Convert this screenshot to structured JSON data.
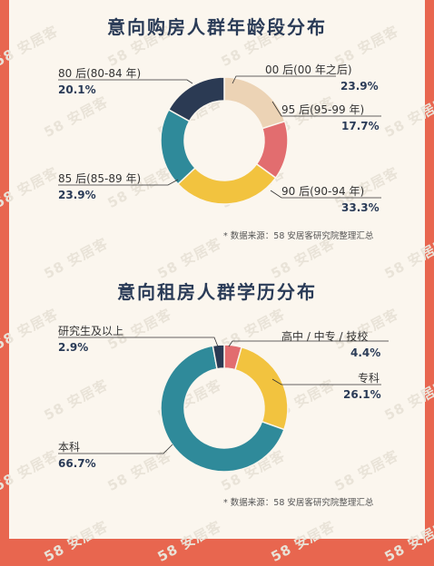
{
  "watermark": "58 安居客",
  "colors": {
    "navy": "#2b3a53",
    "beige": "#ecd3b5",
    "pink": "#e26d6f",
    "yellow": "#f2c33f",
    "teal": "#2f8a9a",
    "frame": "#e8664f"
  },
  "chart_data": [
    {
      "type": "pie",
      "title": "意向购房人群年龄段分布",
      "source": "* 数据来源：58 安居客研究院整理汇总",
      "slices": [
        {
          "label": "00 后(00 年之后)",
          "value": 23.9,
          "value_label": "23.9%",
          "color": "#ecd3b5"
        },
        {
          "label": "95 后(95-99 年)",
          "value": 17.7,
          "value_label": "17.7%",
          "color": "#e26d6f"
        },
        {
          "label": "90 后(90-94 年)",
          "value": 33.3,
          "value_label": "33.3%",
          "color": "#f2c33f"
        },
        {
          "label": "85 后(85-89 年)",
          "value": 23.9,
          "value_label": "23.9%",
          "color": "#2f8a9a"
        },
        {
          "label": "80 后(80-84 年)",
          "value": 20.1,
          "value_label": "20.1%",
          "color": "#2b3a53"
        }
      ]
    },
    {
      "type": "pie",
      "title": "意向租房人群学历分布",
      "source": "* 数据来源：58 安居客研究院整理汇总",
      "slices": [
        {
          "label": "高中 / 中专 / 技校",
          "value": 4.4,
          "value_label": "4.4%",
          "color": "#e26d6f"
        },
        {
          "label": "专科",
          "value": 26.1,
          "value_label": "26.1%",
          "color": "#f2c33f"
        },
        {
          "label": "本科",
          "value": 66.7,
          "value_label": "66.7%",
          "color": "#2f8a9a"
        },
        {
          "label": "研究生及以上",
          "value": 2.9,
          "value_label": "2.9%",
          "color": "#2b3a53"
        }
      ]
    }
  ]
}
